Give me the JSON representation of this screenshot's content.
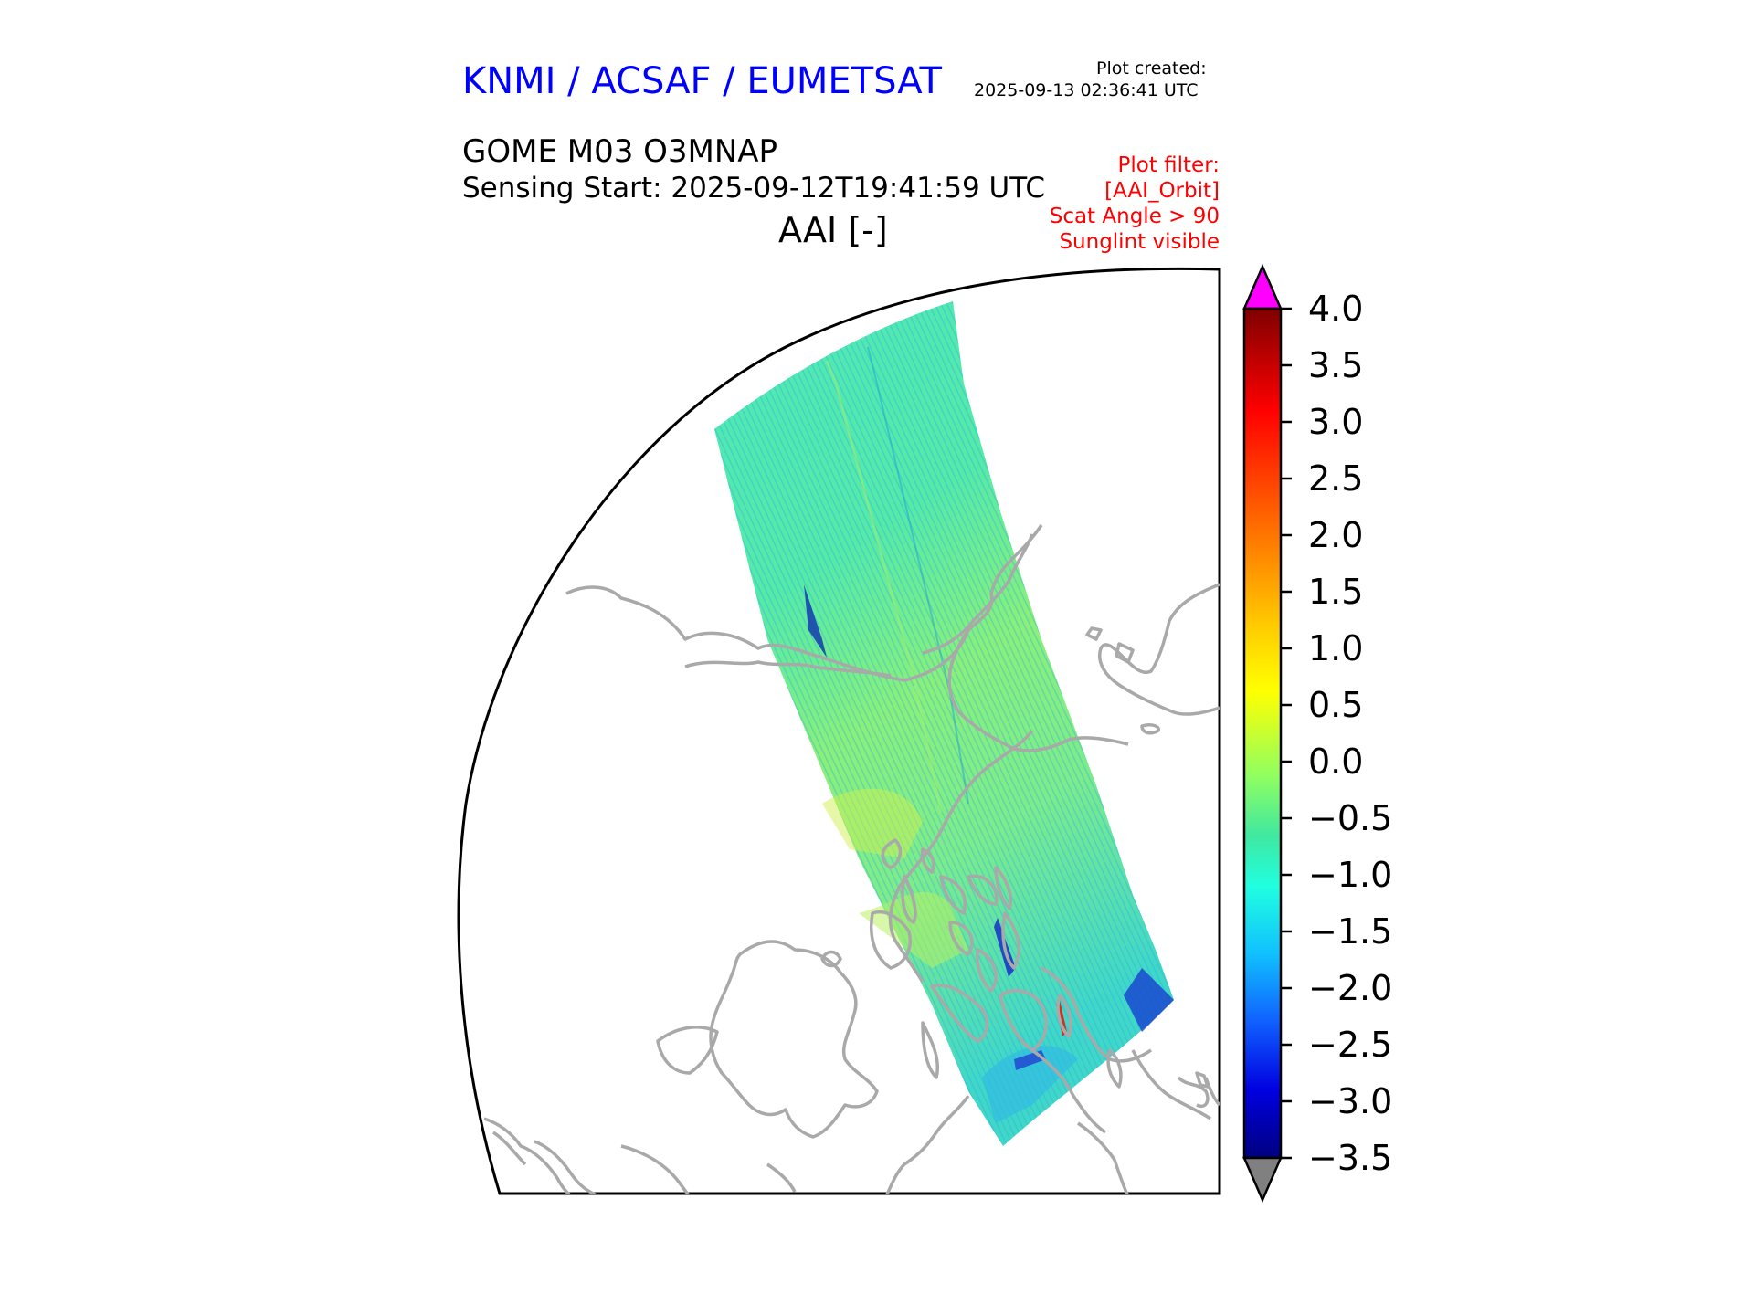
{
  "header": {
    "org": "KNMI / ACSAF / EUMETSAT",
    "created_label": "Plot created:",
    "created_time": "2025-09-13 02:36:41 UTC",
    "product": "GOME M03 O3MNAP",
    "sensing": "Sensing Start: 2025-09-12T19:41:59 UTC",
    "variable": "AAI [-]"
  },
  "filters": [
    "Plot filter:",
    "[AAI_Orbit]",
    "Scat Angle > 90",
    "Sunglint visible"
  ],
  "colorbar": {
    "ticks": [
      "4.0",
      "3.5",
      "3.0",
      "2.5",
      "2.0",
      "1.5",
      "1.0",
      "0.5",
      "0.0",
      "−0.5",
      "−1.0",
      "−1.5",
      "−2.0",
      "−2.5",
      "−3.0",
      "−3.5"
    ],
    "min": -3.5,
    "max": 4.0,
    "over_color": "#ff00ff",
    "under_color": "#808080"
  },
  "colors": {
    "coastline": "#a9a9a9",
    "swath_base": "#45e6b0"
  }
}
